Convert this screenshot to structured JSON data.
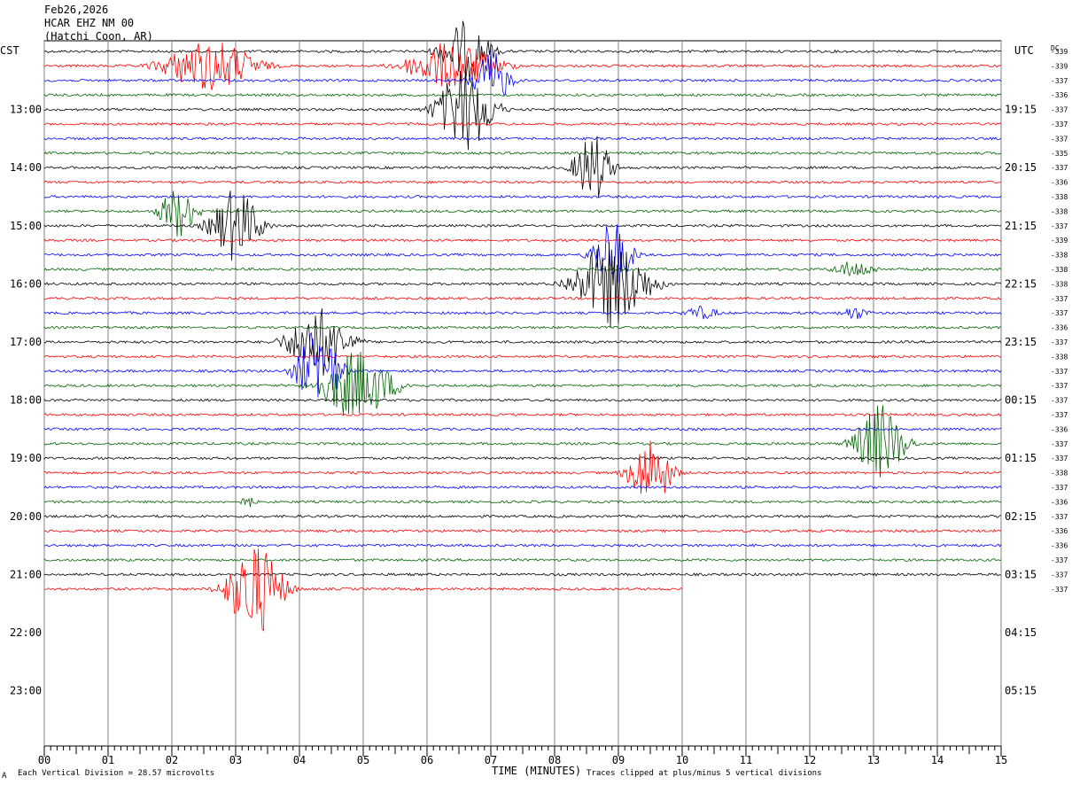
{
  "header": {
    "date": "Feb26,2026",
    "station": "HCAR EHZ NM 00",
    "location": "(Hatchi Coon, AR)",
    "left_zone": "CST",
    "right_zone": "UTC",
    "dc_label": "DC"
  },
  "footer": {
    "division_note": "Each Vertical Division =   28.57 microvolts",
    "xlabel": "TIME (MINUTES)",
    "clip_note": "Traces clipped at plus/minus 5 vertical divisions",
    "corner_mark": "A"
  },
  "chart_data": {
    "type": "line",
    "title": "HCAR EHZ NM 00",
    "xlabel": "TIME (MINUTES)",
    "xlim": [
      0,
      15
    ],
    "x_ticks": [
      "00",
      "01",
      "02",
      "03",
      "04",
      "05",
      "06",
      "07",
      "08",
      "09",
      "10",
      "11",
      "12",
      "13",
      "14",
      "15"
    ],
    "trace_colors": [
      "#000000",
      "#ff0000",
      "#0000ff",
      "#006400"
    ],
    "left_hour_labels": [
      "13:00",
      "14:00",
      "15:00",
      "16:00",
      "17:00",
      "18:00",
      "19:00",
      "20:00",
      "21:00",
      "22:00",
      "23:00"
    ],
    "right_hour_labels": [
      "19:15",
      "20:15",
      "21:15",
      "22:15",
      "23:15",
      "00:15",
      "01:15",
      "02:15",
      "03:15",
      "04:15",
      "05:15"
    ],
    "dc_offsets": [
      "-339",
      "-339",
      "-337",
      "-336",
      "-337",
      "-337",
      "-337",
      "-335",
      "-337",
      "-336",
      "-338",
      "-338",
      "-337",
      "-339",
      "-338",
      "-338",
      "-338",
      "-337",
      "-337",
      "-336",
      "-337",
      "-338",
      "-337",
      "-337",
      "-337",
      "-337",
      "-336",
      "-337",
      "-337",
      "-338",
      "-337",
      "-336",
      "-337",
      "-336",
      "-336",
      "-337",
      "-337",
      "-337"
    ],
    "events": [
      {
        "trace": 0,
        "minute": 6.6,
        "amp": 35,
        "dur": 1.6
      },
      {
        "trace": 1,
        "minute": 2.6,
        "amp": 30,
        "dur": 3.0
      },
      {
        "trace": 1,
        "minute": 6.4,
        "amp": 28,
        "dur": 3.0
      },
      {
        "trace": 2,
        "minute": 7.0,
        "amp": 35,
        "dur": 1.2
      },
      {
        "trace": 4,
        "minute": 6.6,
        "amp": 50,
        "dur": 1.8
      },
      {
        "trace": 8,
        "minute": 8.6,
        "amp": 40,
        "dur": 1.2
      },
      {
        "trace": 11,
        "minute": 2.1,
        "amp": 30,
        "dur": 1.2
      },
      {
        "trace": 12,
        "minute": 3.0,
        "amp": 42,
        "dur": 1.6
      },
      {
        "trace": 14,
        "minute": 8.9,
        "amp": 40,
        "dur": 1.3
      },
      {
        "trace": 15,
        "minute": 12.7,
        "amp": 10,
        "dur": 1.5
      },
      {
        "trace": 16,
        "minute": 8.9,
        "amp": 50,
        "dur": 2.4
      },
      {
        "trace": 18,
        "minute": 10.3,
        "amp": 8,
        "dur": 1.2
      },
      {
        "trace": 18,
        "minute": 12.7,
        "amp": 8,
        "dur": 1.0
      },
      {
        "trace": 20,
        "minute": 4.3,
        "amp": 40,
        "dur": 2.0
      },
      {
        "trace": 22,
        "minute": 4.3,
        "amp": 50,
        "dur": 1.4
      },
      {
        "trace": 23,
        "minute": 4.9,
        "amp": 40,
        "dur": 2.4
      },
      {
        "trace": 27,
        "minute": 13.1,
        "amp": 45,
        "dur": 1.6
      },
      {
        "trace": 29,
        "minute": 9.5,
        "amp": 40,
        "dur": 1.4
      },
      {
        "trace": 31,
        "minute": 3.2,
        "amp": 8,
        "dur": 0.5
      },
      {
        "trace": 37,
        "minute": 3.3,
        "amp": 55,
        "dur": 1.8
      }
    ],
    "total_traces": 38,
    "grid": true
  }
}
